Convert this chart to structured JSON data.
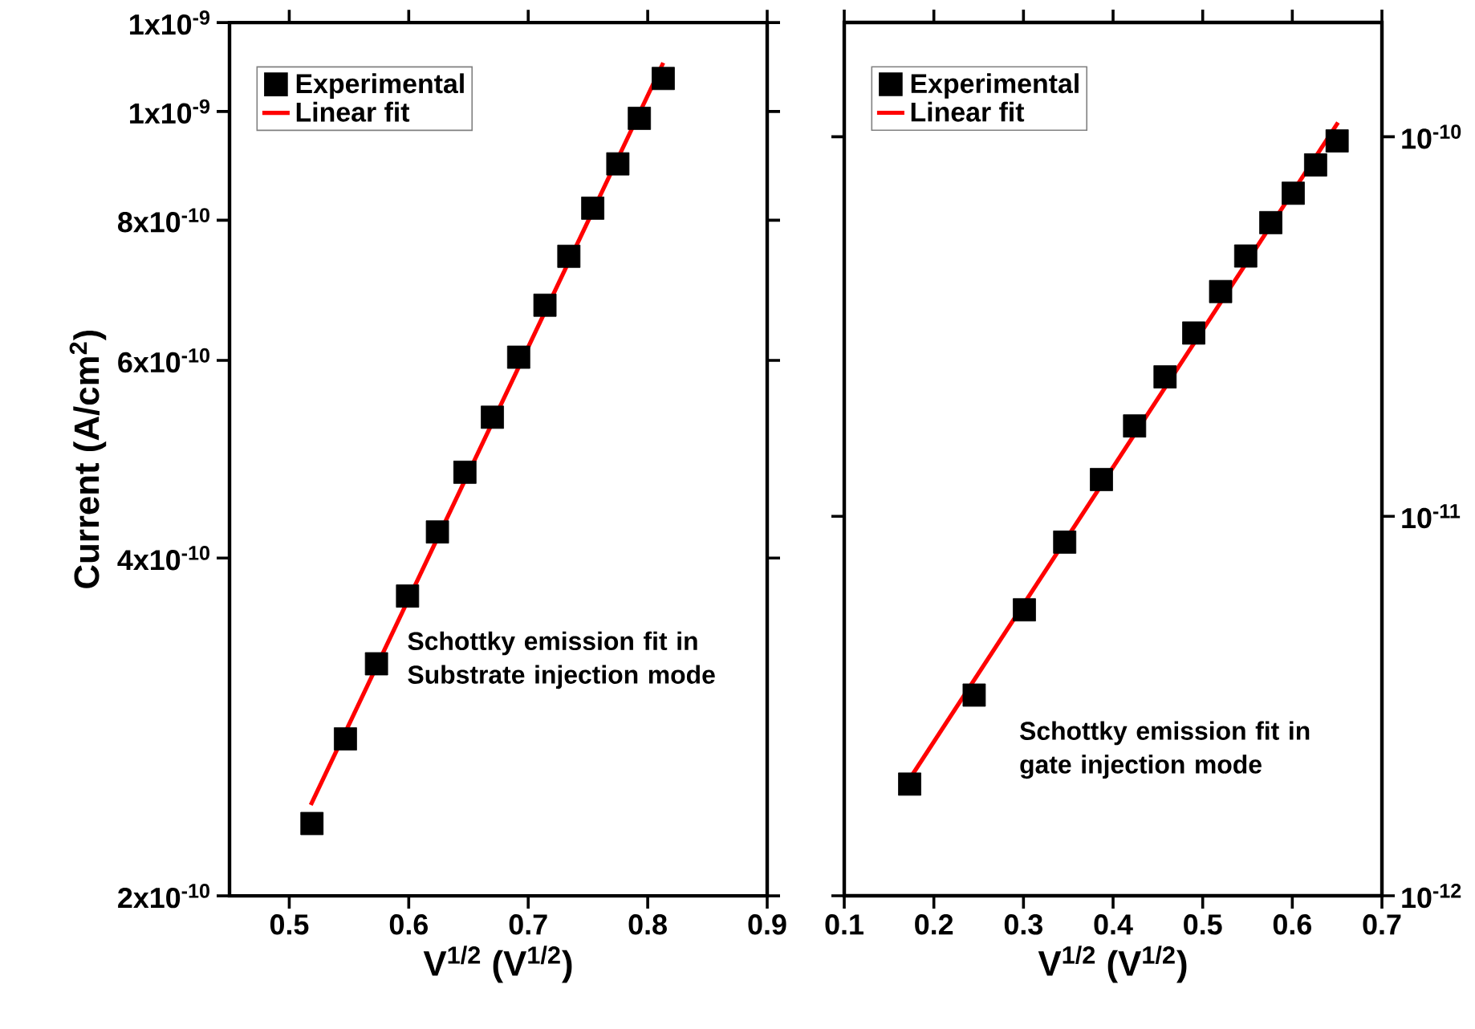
{
  "chart_data": [
    {
      "type": "scatter",
      "xlabel": "V$^{1/2}$ (V$^{1/2}$)",
      "ylabel": "Current (A/cm$^{2}$)",
      "log": true,
      "legend": "top left",
      "xlim": [
        0.45,
        0.9
      ],
      "xticks": [
        0.5,
        0.6,
        0.7,
        0.8,
        0.9
      ],
      "ylim": [
        2e-10,
        1.2e-09
      ],
      "yticks": [
        {
          "value": 2e-10,
          "label": "2x10$^{-10}$"
        },
        {
          "value": 4e-10,
          "label": "4x10$^{-10}$"
        },
        {
          "value": 6e-10,
          "label": "6x10$^{-10}$"
        },
        {
          "value": 8e-10,
          "label": "8x10$^{-10}$"
        },
        {
          "value": 1e-09,
          "label": "1x10$^{-9}$"
        },
        {
          "value": 1.2e-09,
          "label": "1x10$^{-9}$"
        }
      ],
      "annotations": [
        "Schottky emission fit in Substrate injection mode"
      ],
      "series": [
        {
          "name": "Experimental",
          "marker": "square",
          "color": "#000000",
          "x": [
            0.519,
            0.547,
            0.573,
            0.599,
            0.624,
            0.647,
            0.67,
            0.692,
            0.714,
            0.734,
            0.754,
            0.775,
            0.793,
            0.813
          ],
          "values": [
            2.32e-10,
            2.76e-10,
            3.22e-10,
            3.7e-10,
            4.22e-10,
            4.77e-10,
            5.34e-10,
            6.04e-10,
            6.72e-10,
            7.43e-10,
            8.2e-10,
            8.98e-10,
            9.86e-10,
            1.07e-09
          ]
        },
        {
          "name": "Linear fit",
          "type": "line",
          "marker": "none",
          "color": "#ff0000",
          "line_style": "solid",
          "x": [
            0.518,
            0.813
          ],
          "values": [
            2.41e-10,
            1.105e-09
          ]
        }
      ]
    },
    {
      "type": "scatter",
      "xlabel": "V$^{1/2}$ (V$^{1/2}$)",
      "log": "y2",
      "legend": "top left",
      "xlim": [
        0.1,
        0.7
      ],
      "xticks": [
        0.1,
        0.2,
        0.3,
        0.4,
        0.5,
        0.6,
        0.7
      ],
      "y2lim": [
        1e-12,
        2e-10
      ],
      "y2ticks": [
        {
          "value": 1e-12,
          "label": "10$^{-12}$"
        },
        {
          "value": 1e-11,
          "label": "10$^{-11}$"
        },
        {
          "value": 1e-10,
          "label": "10$^{-10}$"
        }
      ],
      "annotations": [
        "Schottky emission fit in gate injection mode"
      ],
      "series": [
        {
          "name": "Experimental",
          "marker": "square",
          "axis": "y2",
          "color": "#000000",
          "x": [
            0.173,
            0.245,
            0.301,
            0.346,
            0.387,
            0.424,
            0.458,
            0.49,
            0.52,
            0.548,
            0.576,
            0.601,
            0.626,
            0.65
          ],
          "values": [
            1.97e-12,
            3.38e-12,
            5.67e-12,
            8.55e-12,
            1.25e-11,
            1.73e-11,
            2.33e-11,
            3.04e-11,
            3.91e-11,
            4.85e-11,
            5.94e-11,
            7.1e-11,
            8.43e-11,
            9.75e-11
          ]
        },
        {
          "name": "Linear fit",
          "type": "line",
          "marker": "none",
          "axis": "y2",
          "color": "#ff0000",
          "line_style": "solid",
          "x": [
            0.171,
            0.651
          ],
          "values": [
            2e-12,
            1.09e-10
          ]
        }
      ]
    }
  ]
}
